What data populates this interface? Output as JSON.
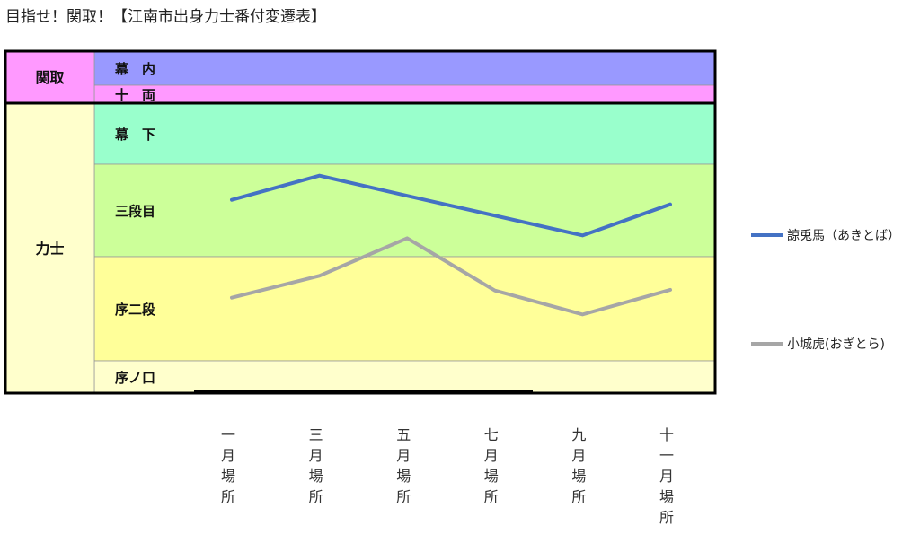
{
  "title": "目指せ！関取！【江南市出身力士番付変遷表】",
  "groups": [
    {
      "label": "関取",
      "fill": "#FF99FF",
      "bands": [
        "幕内",
        "十両"
      ]
    },
    {
      "label": "力士",
      "fill": "#FFFFCC",
      "bands": [
        "幕下",
        "三段目",
        "序二段",
        "序ノ口"
      ]
    }
  ],
  "bands": [
    {
      "label": "幕　内",
      "fill": "#9999FF"
    },
    {
      "label": "十　両",
      "fill": "#FF99FF"
    },
    {
      "label": "幕　下",
      "fill": "#99FFCC"
    },
    {
      "label": "三段目",
      "fill": "#CCFF99"
    },
    {
      "label": "序二段",
      "fill": "#FFFF99"
    },
    {
      "label": "序ノ口",
      "fill": "#FFFFCC"
    }
  ],
  "chart_data": {
    "type": "line",
    "categories": [
      "一月場所",
      "三月場所",
      "五月場所",
      "七月場所",
      "九月場所",
      "十一月場所"
    ],
    "y_scale": "banzuke rank position (0 = top of 幕内, 100 = bottom of 序ノ口)",
    "ylim": [
      0,
      100
    ],
    "series": [
      {
        "name": "諒兎馬（あきとば）",
        "color": "#4472C4",
        "values": [
          43.5,
          36.4,
          42.3,
          48.1,
          53.9,
          44.8
        ]
      },
      {
        "name": "小城虎(おぎとら)",
        "color": "#A6A6A6",
        "values": [
          72.1,
          65.7,
          54.7,
          70.0,
          77.0,
          69.8
        ]
      }
    ],
    "legend_position": "right"
  }
}
